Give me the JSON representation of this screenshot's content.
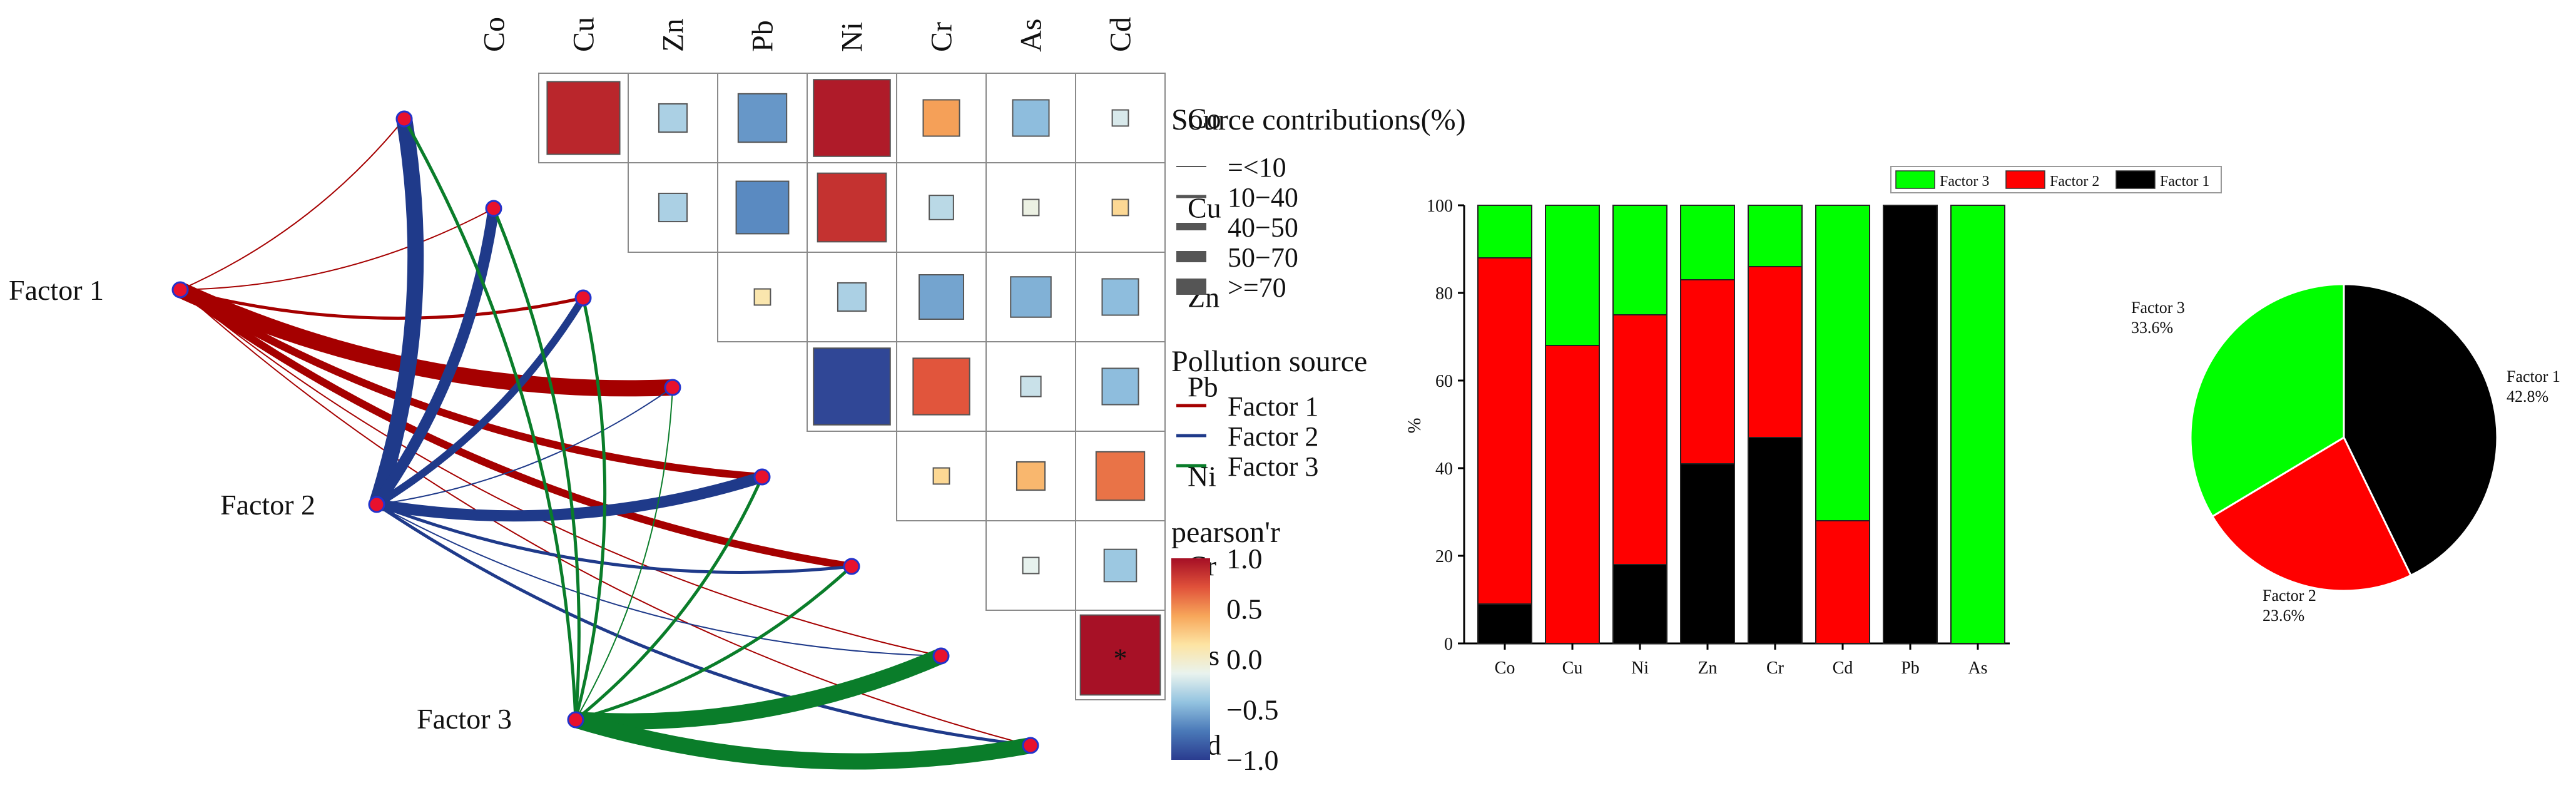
{
  "colors": {
    "factor1": "#a50000",
    "factor2": "#1f3a8a",
    "factor3": "#0a7d2a",
    "node_fill": "#e8112d",
    "node_stroke": "#2233cc",
    "pie_factor1": "#000000",
    "pie_factor2": "#ff0000",
    "pie_factor3": "#00ff00",
    "colorbar": [
      "#2a3c8f",
      "#4a79b8",
      "#93c3e0",
      "#e9f3ee",
      "#fde4a3",
      "#f7a65a",
      "#e0513a",
      "#a50f25"
    ]
  },
  "chart_data": [
    {
      "type": "heatmap",
      "name": "correlation-mantel-network",
      "elements_top": [
        "Co",
        "Cu",
        "Zn",
        "Pb",
        "Ni",
        "Cr",
        "As",
        "Cd"
      ],
      "elements_right": [
        "Co",
        "Cu",
        "Zn",
        "Pb",
        "Ni",
        "Cr",
        "As",
        "Cd"
      ],
      "correlations": [
        {
          "a": "Co",
          "b": "Cu",
          "r": 0.9
        },
        {
          "a": "Co",
          "b": "Zn",
          "r": -0.35
        },
        {
          "a": "Co",
          "b": "Pb",
          "r": -0.6
        },
        {
          "a": "Co",
          "b": "Ni",
          "r": 0.95
        },
        {
          "a": "Co",
          "b": "Cr",
          "r": 0.45
        },
        {
          "a": "Co",
          "b": "As",
          "r": -0.45
        },
        {
          "a": "Co",
          "b": "Cd",
          "r": -0.2
        },
        {
          "a": "Cu",
          "b": "Zn",
          "r": -0.35
        },
        {
          "a": "Cu",
          "b": "Pb",
          "r": -0.65
        },
        {
          "a": "Cu",
          "b": "Ni",
          "r": 0.85
        },
        {
          "a": "Cu",
          "b": "Cr",
          "r": -0.3
        },
        {
          "a": "Cu",
          "b": "As",
          "r": -0.1
        },
        {
          "a": "Cu",
          "b": "Cd",
          "r": 0.2
        },
        {
          "a": "Zn",
          "b": "Pb",
          "r": 0.1
        },
        {
          "a": "Zn",
          "b": "Ni",
          "r": -0.35
        },
        {
          "a": "Zn",
          "b": "Cr",
          "r": -0.55
        },
        {
          "a": "Zn",
          "b": "As",
          "r": -0.5
        },
        {
          "a": "Zn",
          "b": "Cd",
          "r": -0.45
        },
        {
          "a": "Pb",
          "b": "Ni",
          "r": -0.95
        },
        {
          "a": "Pb",
          "b": "Cr",
          "r": 0.7
        },
        {
          "a": "Pb",
          "b": "As",
          "r": -0.25
        },
        {
          "a": "Pb",
          "b": "Cd",
          "r": -0.45
        },
        {
          "a": "Ni",
          "b": "Cr",
          "r": 0.2
        },
        {
          "a": "Ni",
          "b": "As",
          "r": 0.35
        },
        {
          "a": "Ni",
          "b": "Cd",
          "r": 0.6
        },
        {
          "a": "Cr",
          "b": "As",
          "r": -0.15
        },
        {
          "a": "Cr",
          "b": "Cd",
          "r": -0.4
        },
        {
          "a": "As",
          "b": "Cd",
          "r": 0.99,
          "label": "*"
        }
      ],
      "factors": [
        "Factor 1",
        "Factor 2",
        "Factor 3"
      ],
      "links": [
        {
          "factor": "Factor 1",
          "element": "Co",
          "contribution": "=<10"
        },
        {
          "factor": "Factor 1",
          "element": "Cu",
          "contribution": "=<10"
        },
        {
          "factor": "Factor 1",
          "element": "Zn",
          "contribution": "10-40"
        },
        {
          "factor": "Factor 1",
          "element": "Pb",
          "contribution": ">=70"
        },
        {
          "factor": "Factor 1",
          "element": "Ni",
          "contribution": "40-50"
        },
        {
          "factor": "Factor 1",
          "element": "Cr",
          "contribution": "40-50"
        },
        {
          "factor": "Factor 1",
          "element": "As",
          "contribution": "=<10"
        },
        {
          "factor": "Factor 1",
          "element": "Cd",
          "contribution": "=<10"
        },
        {
          "factor": "Factor 2",
          "element": "Co",
          "contribution": ">=70"
        },
        {
          "factor": "Factor 2",
          "element": "Cu",
          "contribution": "50-70"
        },
        {
          "factor": "Factor 2",
          "element": "Zn",
          "contribution": "40-50"
        },
        {
          "factor": "Factor 2",
          "element": "Pb",
          "contribution": "=<10"
        },
        {
          "factor": "Factor 2",
          "element": "Ni",
          "contribution": "50-70"
        },
        {
          "factor": "Factor 2",
          "element": "Cr",
          "contribution": "10-40"
        },
        {
          "factor": "Factor 2",
          "element": "As",
          "contribution": "=<10"
        },
        {
          "factor": "Factor 2",
          "element": "Cd",
          "contribution": "10-40"
        },
        {
          "factor": "Factor 3",
          "element": "Co",
          "contribution": "10-40"
        },
        {
          "factor": "Factor 3",
          "element": "Cu",
          "contribution": "10-40"
        },
        {
          "factor": "Factor 3",
          "element": "Zn",
          "contribution": "10-40"
        },
        {
          "factor": "Factor 3",
          "element": "Pb",
          "contribution": "=<10"
        },
        {
          "factor": "Factor 3",
          "element": "Ni",
          "contribution": "10-40"
        },
        {
          "factor": "Factor 3",
          "element": "Cr",
          "contribution": "10-40"
        },
        {
          "factor": "Factor 3",
          "element": "As",
          "contribution": ">=70"
        },
        {
          "factor": "Factor 3",
          "element": "Cd",
          "contribution": ">=70"
        }
      ],
      "legend_source": {
        "title": "Source contributions(%)",
        "items": [
          "=<10",
          "10−40",
          "40−50",
          "50−70",
          ">=70"
        ]
      },
      "legend_pollution": {
        "title": "Pollution source",
        "items": [
          "Factor 1",
          "Factor 2",
          "Factor 3"
        ]
      },
      "colorbar": {
        "title": "pearson'r",
        "range": [
          -1.0,
          1.0
        ],
        "ticks": [
          "1.0",
          "0.5",
          "0.0",
          "−0.5",
          "−1.0"
        ]
      }
    },
    {
      "type": "bar",
      "stacked": true,
      "name": "source-apportionment-stacked-bar",
      "categories": [
        "Co",
        "Cu",
        "Ni",
        "Zn",
        "Cr",
        "Cd",
        "Pb",
        "As"
      ],
      "series": [
        {
          "name": "Factor 1",
          "values": [
            9,
            0,
            18,
            41,
            47,
            0,
            100,
            0
          ]
        },
        {
          "name": "Factor 2",
          "values": [
            79,
            68,
            57,
            42,
            39,
            28,
            0,
            0
          ]
        },
        {
          "name": "Factor 3",
          "values": [
            12,
            32,
            25,
            17,
            14,
            72,
            0,
            100
          ]
        }
      ],
      "legend": [
        "Factor 3",
        "Factor 2",
        "Factor 1"
      ],
      "ylabel": "%",
      "ylim": [
        0,
        100
      ],
      "yticks": [
        "0",
        "20",
        "40",
        "60",
        "80",
        "100"
      ]
    },
    {
      "type": "pie",
      "name": "factor-share-pie",
      "slices": [
        {
          "name": "Factor 1",
          "value": 42.8,
          "label": "42.8%"
        },
        {
          "name": "Factor 2",
          "value": 23.6,
          "label": "23.6%"
        },
        {
          "name": "Factor 3",
          "value": 33.6,
          "label": "33.6%"
        }
      ]
    }
  ]
}
